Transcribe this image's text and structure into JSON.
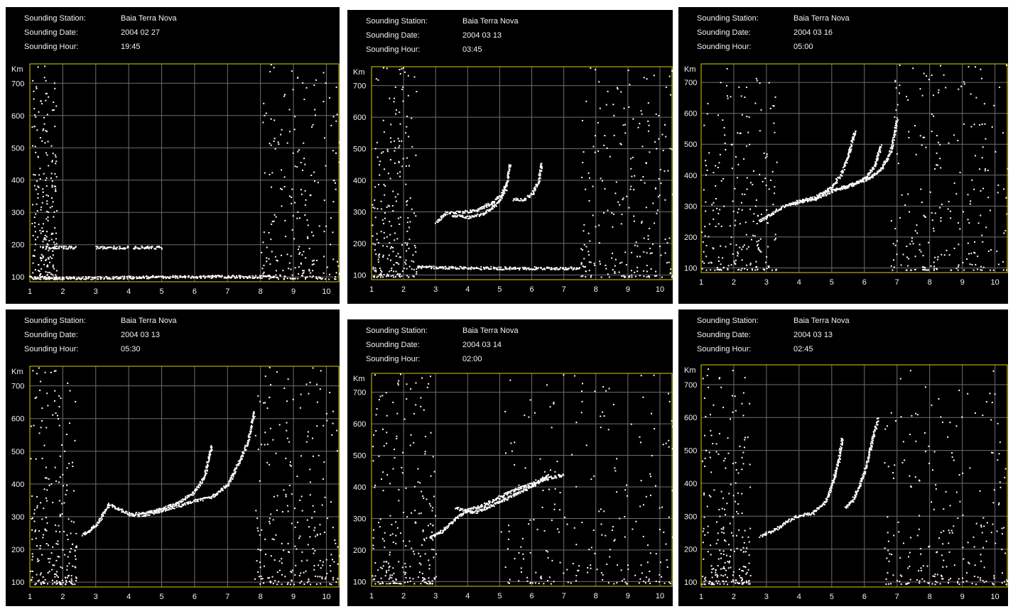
{
  "labels": {
    "station": "Sounding Station:",
    "date": "Sounding Date:",
    "hour": "Sounding Hour:"
  },
  "y_unit": "Km",
  "colors": {
    "background": "#000000",
    "frame": "#d8d000",
    "grid": "#6e6e6e",
    "text": "#f2f2f2",
    "echo": "#ffffff"
  },
  "panels": [
    {
      "station": "Baia Terra Nova",
      "date": "2004 02 27",
      "hour": "19:45"
    },
    {
      "station": "Baia Terra Nova",
      "date": "2004 03 13",
      "hour": "03:45"
    },
    {
      "station": "Baia Terra Nova",
      "date": "2004 03 16",
      "hour": "05:00"
    },
    {
      "station": "Baia Terra Nova",
      "date": "2004 03 13",
      "hour": "05:30"
    },
    {
      "station": "Baia Terra Nova",
      "date": "2004 03 14",
      "hour": "02:00"
    },
    {
      "station": "Baia Terra Nova",
      "date": "2004 03 13",
      "hour": "02:45"
    }
  ],
  "chart_data": [
    {
      "type": "scatter",
      "xlim": [
        1,
        10.4
      ],
      "ylim": [
        85,
        760
      ],
      "xticks": [
        1,
        2,
        3,
        4,
        5,
        6,
        7,
        8,
        9,
        10
      ],
      "yticks": [
        100,
        200,
        300,
        400,
        500,
        600,
        700
      ],
      "ylabel": "Km",
      "grid": true,
      "traces": [
        {
          "x": [
            1.0,
            2.0,
            3.0,
            4.0,
            5.0,
            6.0,
            7.0,
            8.0,
            8.5
          ],
          "y": [
            100,
            98,
            99,
            100,
            102,
            102,
            103,
            102,
            104
          ]
        },
        {
          "x": [
            1.4,
            2.4
          ],
          "y": [
            193,
            193
          ]
        },
        {
          "x": [
            3.0,
            4.0
          ],
          "y": [
            193,
            193
          ]
        },
        {
          "x": [
            4.1,
            5.0
          ],
          "y": [
            193,
            193
          ]
        }
      ],
      "clusters": [
        {
          "x": [
            1.05,
            1.8
          ],
          "y": [
            95,
            760
          ]
        },
        {
          "x": [
            8.0,
            10.4
          ],
          "y": [
            95,
            760
          ]
        }
      ]
    },
    {
      "type": "scatter",
      "xlim": [
        1,
        10.4
      ],
      "ylim": [
        85,
        760
      ],
      "xticks": [
        1,
        2,
        3,
        4,
        5,
        6,
        7,
        8,
        9,
        10
      ],
      "yticks": [
        100,
        200,
        300,
        400,
        500,
        600,
        700
      ],
      "ylabel": "Km",
      "grid": true,
      "traces": [
        {
          "x": [
            2.4,
            3.0,
            4.0,
            5.0,
            6.0,
            7.0,
            7.5
          ],
          "y": [
            127,
            125,
            124,
            123,
            123,
            123,
            122
          ]
        },
        {
          "x": [
            3.0,
            3.3,
            3.8,
            4.3,
            4.7,
            5.0,
            5.2,
            5.3
          ],
          "y": [
            268,
            298,
            300,
            308,
            328,
            350,
            390,
            455
          ]
        },
        {
          "x": [
            3.5,
            4.0,
            4.5,
            4.9,
            5.2
          ],
          "y": [
            290,
            284,
            296,
            328,
            372
          ]
        },
        {
          "x": [
            5.4,
            5.7,
            6.0,
            6.2,
            6.3
          ],
          "y": [
            342,
            340,
            358,
            400,
            458
          ]
        }
      ],
      "clusters": [
        {
          "x": [
            1.0,
            2.4
          ],
          "y": [
            95,
            760
          ]
        },
        {
          "x": [
            7.5,
            10.4
          ],
          "y": [
            95,
            760
          ]
        }
      ]
    },
    {
      "type": "scatter",
      "xlim": [
        1,
        10.4
      ],
      "ylim": [
        85,
        760
      ],
      "xticks": [
        1,
        2,
        3,
        4,
        5,
        6,
        7,
        8,
        9,
        10
      ],
      "yticks": [
        100,
        200,
        300,
        400,
        500,
        600,
        700
      ],
      "ylabel": "Km",
      "grid": true,
      "traces": [
        {
          "x": [
            2.8,
            3.5,
            4.0,
            4.5,
            5.0,
            5.3,
            5.5,
            5.7
          ],
          "y": [
            255,
            300,
            318,
            330,
            365,
            410,
            470,
            545
          ]
        },
        {
          "x": [
            3.8,
            4.5,
            5.0,
            5.5,
            6.0,
            6.3,
            6.5
          ],
          "y": [
            310,
            325,
            352,
            365,
            390,
            430,
            500
          ]
        },
        {
          "x": [
            5.0,
            5.6,
            6.1,
            6.5,
            6.8,
            7.0
          ],
          "y": [
            350,
            372,
            390,
            420,
            480,
            585
          ]
        }
      ],
      "clusters": [
        {
          "x": [
            1.0,
            3.3
          ],
          "y": [
            95,
            760
          ]
        },
        {
          "x": [
            6.8,
            10.4
          ],
          "y": [
            95,
            760
          ]
        }
      ]
    },
    {
      "type": "scatter",
      "xlim": [
        1,
        10.4
      ],
      "ylim": [
        85,
        760
      ],
      "xticks": [
        1,
        2,
        3,
        4,
        5,
        6,
        7,
        8,
        9,
        10
      ],
      "yticks": [
        100,
        200,
        300,
        400,
        500,
        600,
        700
      ],
      "ylabel": "Km",
      "grid": true,
      "traces": [
        {
          "x": [
            2.6,
            3.0,
            3.4,
            3.6,
            4.0,
            4.5,
            5.0,
            5.5,
            6.0,
            6.3,
            6.5
          ],
          "y": [
            245,
            275,
            340,
            330,
            310,
            312,
            325,
            345,
            378,
            430,
            520
          ]
        },
        {
          "x": [
            4.0,
            4.5,
            5.0,
            5.5,
            6.0,
            6.5,
            7.0,
            7.3,
            7.6,
            7.8
          ],
          "y": [
            305,
            308,
            320,
            335,
            350,
            362,
            400,
            460,
            530,
            625
          ]
        }
      ],
      "clusters": [
        {
          "x": [
            1.0,
            2.4
          ],
          "y": [
            95,
            760
          ]
        },
        {
          "x": [
            7.8,
            10.4
          ],
          "y": [
            95,
            760
          ]
        }
      ]
    },
    {
      "type": "scatter",
      "xlim": [
        1,
        10.4
      ],
      "ylim": [
        85,
        760
      ],
      "xticks": [
        1,
        2,
        3,
        4,
        5,
        6,
        7,
        8,
        9,
        10
      ],
      "yticks": [
        100,
        200,
        300,
        400,
        500,
        600,
        700
      ],
      "ylabel": "Km",
      "grid": true,
      "traces": [
        {
          "x": [
            2.8,
            3.2,
            3.6,
            4.0,
            4.5,
            5.0,
            5.5,
            6.0,
            6.5,
            7.0
          ],
          "y": [
            240,
            262,
            300,
            328,
            345,
            370,
            395,
            412,
            430,
            440
          ]
        },
        {
          "x": [
            3.6,
            4.2,
            4.8,
            5.4,
            6.0,
            6.5
          ],
          "y": [
            335,
            320,
            345,
            375,
            405,
            440
          ]
        }
      ],
      "clusters": [
        {
          "x": [
            1.0,
            3.0
          ],
          "y": [
            95,
            760
          ]
        },
        {
          "x": [
            5.0,
            10.4
          ],
          "y": [
            95,
            760
          ]
        }
      ]
    },
    {
      "type": "scatter",
      "xlim": [
        1,
        10.4
      ],
      "ylim": [
        85,
        760
      ],
      "xticks": [
        1,
        2,
        3,
        4,
        5,
        6,
        7,
        8,
        9,
        10
      ],
      "yticks": [
        100,
        200,
        300,
        400,
        500,
        600,
        700
      ],
      "ylabel": "Km",
      "grid": true,
      "traces": [
        {
          "x": [
            2.8,
            3.2,
            3.6,
            4.0,
            4.4,
            4.8,
            5.0,
            5.2,
            5.3
          ],
          "y": [
            242,
            258,
            285,
            305,
            310,
            345,
            400,
            470,
            540
          ]
        },
        {
          "x": [
            5.4,
            5.6,
            5.8,
            6.0,
            6.2,
            6.4
          ],
          "y": [
            330,
            345,
            385,
            440,
            520,
            600
          ]
        }
      ],
      "clusters": [
        {
          "x": [
            1.0,
            2.5
          ],
          "y": [
            95,
            760
          ]
        },
        {
          "x": [
            6.6,
            10.4
          ],
          "y": [
            95,
            760
          ]
        }
      ]
    }
  ]
}
